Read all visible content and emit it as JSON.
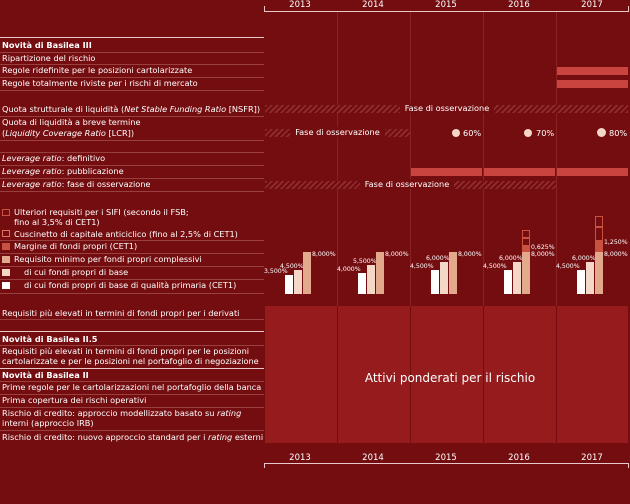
{
  "years": [
    "2013",
    "2014",
    "2015",
    "2016",
    "2017"
  ],
  "colors": {
    "background": "#740d10",
    "band": "#c9443f",
    "rwa": "#961b1d",
    "cet1": "#ffffff",
    "base": "#f5d7c7",
    "total": "#e3a98c",
    "margin": "#c8523f"
  },
  "basel3": {
    "title": "Novità di Basilea III",
    "rows": [
      "Ripartizione del rischio",
      "Regole ridefinite per le posizioni cartolarizzate",
      "Regole totalmente riviste per i rischi di mercato"
    ]
  },
  "liquidity": {
    "nsfr_pre": "Quota strutturale di liquidità (",
    "nsfr_it": "Net Stable Funding Ratio",
    "nsfr_post": " [NSFR])",
    "nsfr_obs": "Fase di osservazione",
    "lcr_line1": "Quota di liquidità a breve termine",
    "lcr_pre": "(",
    "lcr_it": "Liquidity Coverage Ratio",
    "lcr_post": " [LCR])",
    "lcr_obs": "Fase di osservazione",
    "lcr_steps": [
      "60%",
      "70%",
      "80%"
    ]
  },
  "leverage": {
    "it": "Leverage ratio",
    "rows": [
      ": definitivo",
      ": pubblicazione",
      ": fase di osservazione"
    ],
    "obs": "Fase di osservazione"
  },
  "legend": [
    "Ulteriori requisiti per i SIFI (secondo il FSB;",
    "fino al 3,5% di CET1)",
    "Cuscinetto di capitale anticiclico (fino al 2,5% di CET1)",
    "Margine di fondi propri (CET1)",
    "Requisito minimo per fondi propri complessivi",
    "di cui fondi propri di base",
    "di cui fondi propri di base di qualità primaria (CET1)"
  ],
  "capital": {
    "cet1": [
      3.5,
      4.0,
      4.5,
      4.5,
      4.5
    ],
    "base": [
      4.5,
      5.5,
      6.0,
      6.0,
      6.0
    ],
    "total": [
      8.0,
      8.0,
      8.0,
      8.0,
      8.0
    ],
    "margin": [
      0,
      0,
      0,
      0.625,
      1.25
    ],
    "labels": {
      "cet1": [
        "3,500%",
        "4,000%",
        "4,500%",
        "4,500%",
        "4,500%"
      ],
      "base": [
        "4,500%",
        "5,500%",
        "6,000%",
        "6,000%",
        "6,000%"
      ],
      "total": [
        "8,000%",
        "8,000%",
        "8,000%",
        "8,000%",
        "8,000%"
      ],
      "margin": [
        "",
        "",
        "",
        "0,625%",
        "1,250%"
      ]
    }
  },
  "derivati": "Requisiti più elevati in termini di fondi propri per i derivati",
  "basel25": {
    "title": "Novità di Basilea II.5",
    "line1": "Requisiti più elevati in termini di fondi propri per le posizioni",
    "line2": "cartolarizzate e per le posizioni nel portafoglio di negoziazione"
  },
  "basel2": {
    "title": "Novità di Basilea II",
    "rows": [
      "Prime regole per le cartolarizzazioni nel portafoglio della banca",
      "Prima copertura dei rischi operativi"
    ],
    "irb_pre": "Rischio di credito: approccio modellizzato basato su ",
    "irb_it": "rating",
    "irb_line2": "interni (approccio IRB)",
    "std_pre": "Rischio di credito: nuovo approccio standard per i ",
    "std_it": "rating",
    "std_post": " esterni"
  },
  "rwa_label": "Attivi ponderati per il rischio"
}
